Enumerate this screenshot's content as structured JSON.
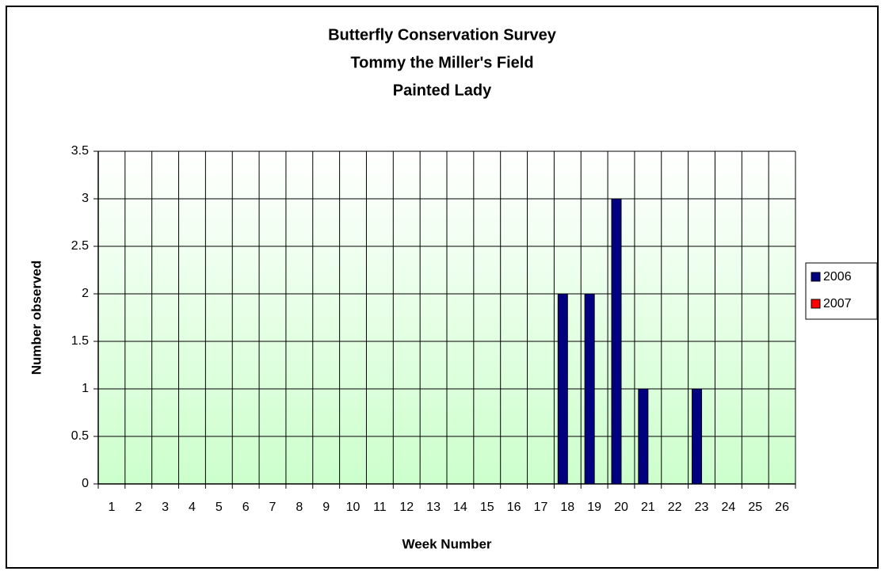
{
  "chart_data": {
    "type": "bar",
    "title": [
      "Butterfly Conservation Survey",
      "Tommy the Miller's Field",
      "Painted Lady"
    ],
    "x_label": "Week Number",
    "y_label": "Number observed",
    "categories": [
      "1",
      "2",
      "3",
      "4",
      "5",
      "6",
      "7",
      "8",
      "9",
      "10",
      "11",
      "12",
      "13",
      "14",
      "15",
      "16",
      "17",
      "18",
      "19",
      "20",
      "21",
      "22",
      "23",
      "24",
      "25",
      "26"
    ],
    "series": [
      {
        "name": "2006",
        "color": "#000080",
        "values": [
          0,
          0,
          0,
          0,
          0,
          0,
          0,
          0,
          0,
          0,
          0,
          0,
          0,
          0,
          0,
          0,
          0,
          2,
          2,
          3,
          1,
          0,
          1,
          0,
          0,
          0
        ]
      },
      {
        "name": "2007",
        "color": "#ff0000",
        "values": [
          0,
          0,
          0,
          0,
          0,
          0,
          0,
          0,
          0,
          0,
          0,
          0,
          0,
          0,
          0,
          0,
          0,
          0,
          0,
          0,
          0,
          0,
          0,
          0,
          0,
          0
        ]
      }
    ],
    "ylim": [
      0,
      3.5
    ],
    "yticks": [
      0,
      0.5,
      1,
      1.5,
      2,
      2.5,
      3,
      3.5
    ],
    "grid": true,
    "legend": "right"
  }
}
